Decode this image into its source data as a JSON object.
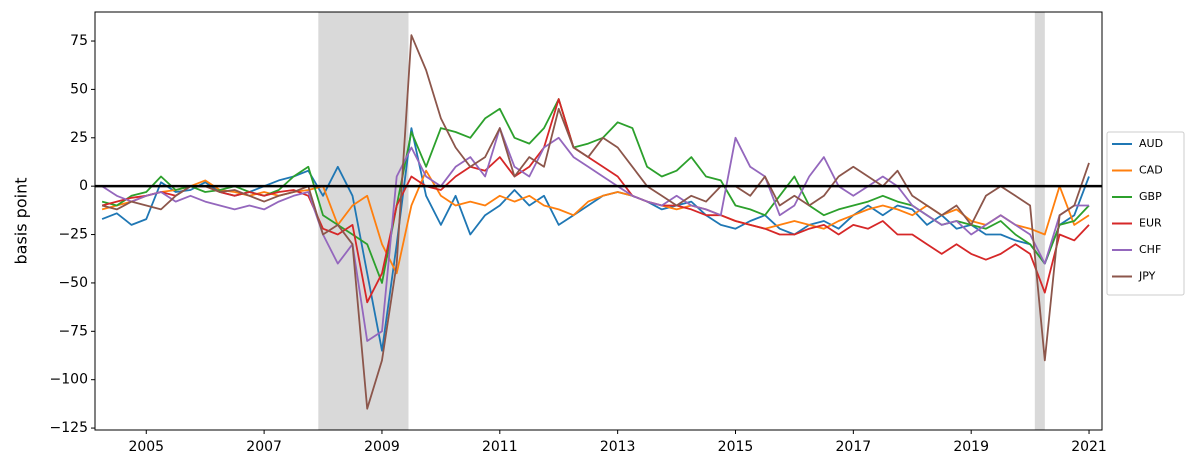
{
  "chart_data": {
    "type": "line",
    "y_label": "basis point",
    "x": [
      2004.25,
      2004.5,
      2004.75,
      2005,
      2005.25,
      2005.5,
      2005.75,
      2006,
      2006.25,
      2006.5,
      2006.75,
      2007,
      2007.25,
      2007.5,
      2007.75,
      2008,
      2008.25,
      2008.5,
      2008.75,
      2009,
      2009.25,
      2009.5,
      2009.75,
      2010,
      2010.25,
      2010.5,
      2010.75,
      2011,
      2011.25,
      2011.5,
      2011.75,
      2012,
      2012.25,
      2012.5,
      2012.75,
      2013,
      2013.25,
      2013.5,
      2013.75,
      2014,
      2014.25,
      2014.5,
      2014.75,
      2015,
      2015.25,
      2015.5,
      2015.75,
      2016,
      2016.25,
      2016.5,
      2016.75,
      2017,
      2017.25,
      2017.5,
      2017.75,
      2018,
      2018.25,
      2018.5,
      2018.75,
      2019,
      2019.25,
      2019.5,
      2019.75,
      2020,
      2020.25,
      2020.5,
      2020.75,
      2021
    ],
    "series": [
      {
        "name": "AUD",
        "color": "#1f77b4",
        "values": [
          -17,
          -14,
          -20,
          -17,
          2,
          -3,
          -2,
          2,
          -3,
          -5,
          -3,
          0,
          3,
          5,
          8,
          -5,
          10,
          -5,
          -45,
          -85,
          -30,
          30,
          -5,
          -20,
          -5,
          -25,
          -15,
          -10,
          -2,
          -10,
          -5,
          -20,
          -15,
          -10,
          -5,
          -3,
          -5,
          -8,
          -12,
          -10,
          -8,
          -15,
          -20,
          -22,
          -18,
          -15,
          -22,
          -25,
          -20,
          -18,
          -22,
          -15,
          -10,
          -15,
          -10,
          -12,
          -20,
          -15,
          -22,
          -20,
          -25,
          -25,
          -28,
          -30,
          -40,
          -20,
          -15,
          5
        ]
      },
      {
        "name": "CAD",
        "color": "#ff7f0e",
        "values": [
          -12,
          -10,
          -8,
          -5,
          -3,
          -2,
          0,
          3,
          -2,
          -3,
          -5,
          -3,
          -5,
          -3,
          -2,
          0,
          -20,
          -10,
          -5,
          -30,
          -45,
          -10,
          8,
          -5,
          -10,
          -8,
          -10,
          -5,
          -8,
          -5,
          -10,
          -12,
          -15,
          -8,
          -5,
          -3,
          -5,
          -8,
          -10,
          -12,
          -10,
          -12,
          -15,
          -18,
          -20,
          -22,
          -20,
          -18,
          -20,
          -22,
          -18,
          -15,
          -12,
          -10,
          -12,
          -15,
          -10,
          -15,
          -12,
          -18,
          -20,
          -15,
          -20,
          -22,
          -25,
          0,
          -20,
          -15
        ]
      },
      {
        "name": "GBP",
        "color": "#2ca02c",
        "values": [
          -8,
          -10,
          -5,
          -3,
          5,
          -2,
          0,
          -3,
          -2,
          0,
          -3,
          -5,
          -2,
          5,
          10,
          -15,
          -20,
          -25,
          -30,
          -50,
          -10,
          28,
          10,
          30,
          28,
          25,
          35,
          40,
          25,
          22,
          30,
          45,
          20,
          22,
          25,
          33,
          30,
          10,
          5,
          8,
          15,
          5,
          3,
          -10,
          -12,
          -15,
          -5,
          5,
          -10,
          -15,
          -12,
          -10,
          -8,
          -5,
          -8,
          -10,
          -15,
          -20,
          -18,
          -20,
          -22,
          -18,
          -25,
          -30,
          -40,
          -20,
          -18,
          -10
        ]
      },
      {
        "name": "EUR",
        "color": "#d62728",
        "values": [
          -10,
          -8,
          -6,
          -5,
          -3,
          -5,
          0,
          0,
          -3,
          -5,
          -3,
          -5,
          -3,
          -2,
          -5,
          -22,
          -25,
          -20,
          -60,
          -45,
          -10,
          5,
          0,
          -2,
          5,
          10,
          8,
          15,
          5,
          10,
          20,
          45,
          20,
          15,
          10,
          5,
          -5,
          -8,
          -10,
          -10,
          -12,
          -15,
          -15,
          -18,
          -20,
          -22,
          -25,
          -25,
          -22,
          -20,
          -25,
          -20,
          -22,
          -18,
          -25,
          -25,
          -30,
          -35,
          -30,
          -35,
          -38,
          -35,
          -30,
          -35,
          -55,
          -25,
          -28,
          -20
        ]
      },
      {
        "name": "CHF",
        "color": "#9467bd",
        "values": [
          0,
          -5,
          -8,
          -5,
          -3,
          -8,
          -5,
          -8,
          -10,
          -12,
          -10,
          -12,
          -8,
          -5,
          -3,
          -25,
          -40,
          -30,
          -80,
          -75,
          5,
          20,
          5,
          0,
          10,
          15,
          5,
          30,
          10,
          5,
          20,
          25,
          15,
          10,
          5,
          0,
          -5,
          -8,
          -10,
          -5,
          -10,
          -12,
          -15,
          25,
          10,
          5,
          -15,
          -10,
          5,
          15,
          0,
          -5,
          0,
          5,
          0,
          -10,
          -15,
          -20,
          -18,
          -25,
          -20,
          -15,
          -20,
          -25,
          -40,
          -15,
          -10,
          -10
        ]
      },
      {
        "name": "JPY",
        "color": "#8c564b",
        "values": [
          -10,
          -12,
          -8,
          -10,
          -12,
          -5,
          0,
          0,
          -3,
          -2,
          -5,
          -8,
          -5,
          -3,
          0,
          -25,
          -20,
          -30,
          -115,
          -90,
          -40,
          78,
          60,
          35,
          20,
          10,
          15,
          30,
          5,
          15,
          10,
          40,
          20,
          15,
          25,
          20,
          10,
          0,
          -5,
          -10,
          -5,
          -8,
          0,
          0,
          -5,
          5,
          -10,
          -5,
          -10,
          -5,
          5,
          10,
          5,
          0,
          8,
          -5,
          -10,
          -15,
          -10,
          -20,
          -5,
          0,
          -5,
          -10,
          -90,
          -15,
          -10,
          12
        ]
      }
    ],
    "shaded_regions": [
      [
        2007.92,
        2009.45
      ],
      [
        2020.08,
        2020.25
      ]
    ],
    "hline": 0,
    "xlim": [
      2004.13,
      2021.22
    ],
    "ylim": [
      -126,
      90
    ],
    "xticks": [
      2005,
      2007,
      2009,
      2011,
      2013,
      2015,
      2017,
      2019,
      2021
    ],
    "yticks": [
      {
        "value": -125,
        "label": "−125"
      },
      {
        "value": -100,
        "label": "−100"
      },
      {
        "value": -75,
        "label": "−75"
      },
      {
        "value": -50,
        "label": "−50"
      },
      {
        "value": -25,
        "label": "−25"
      },
      0,
      25,
      50,
      75
    ],
    "legend": "right"
  }
}
